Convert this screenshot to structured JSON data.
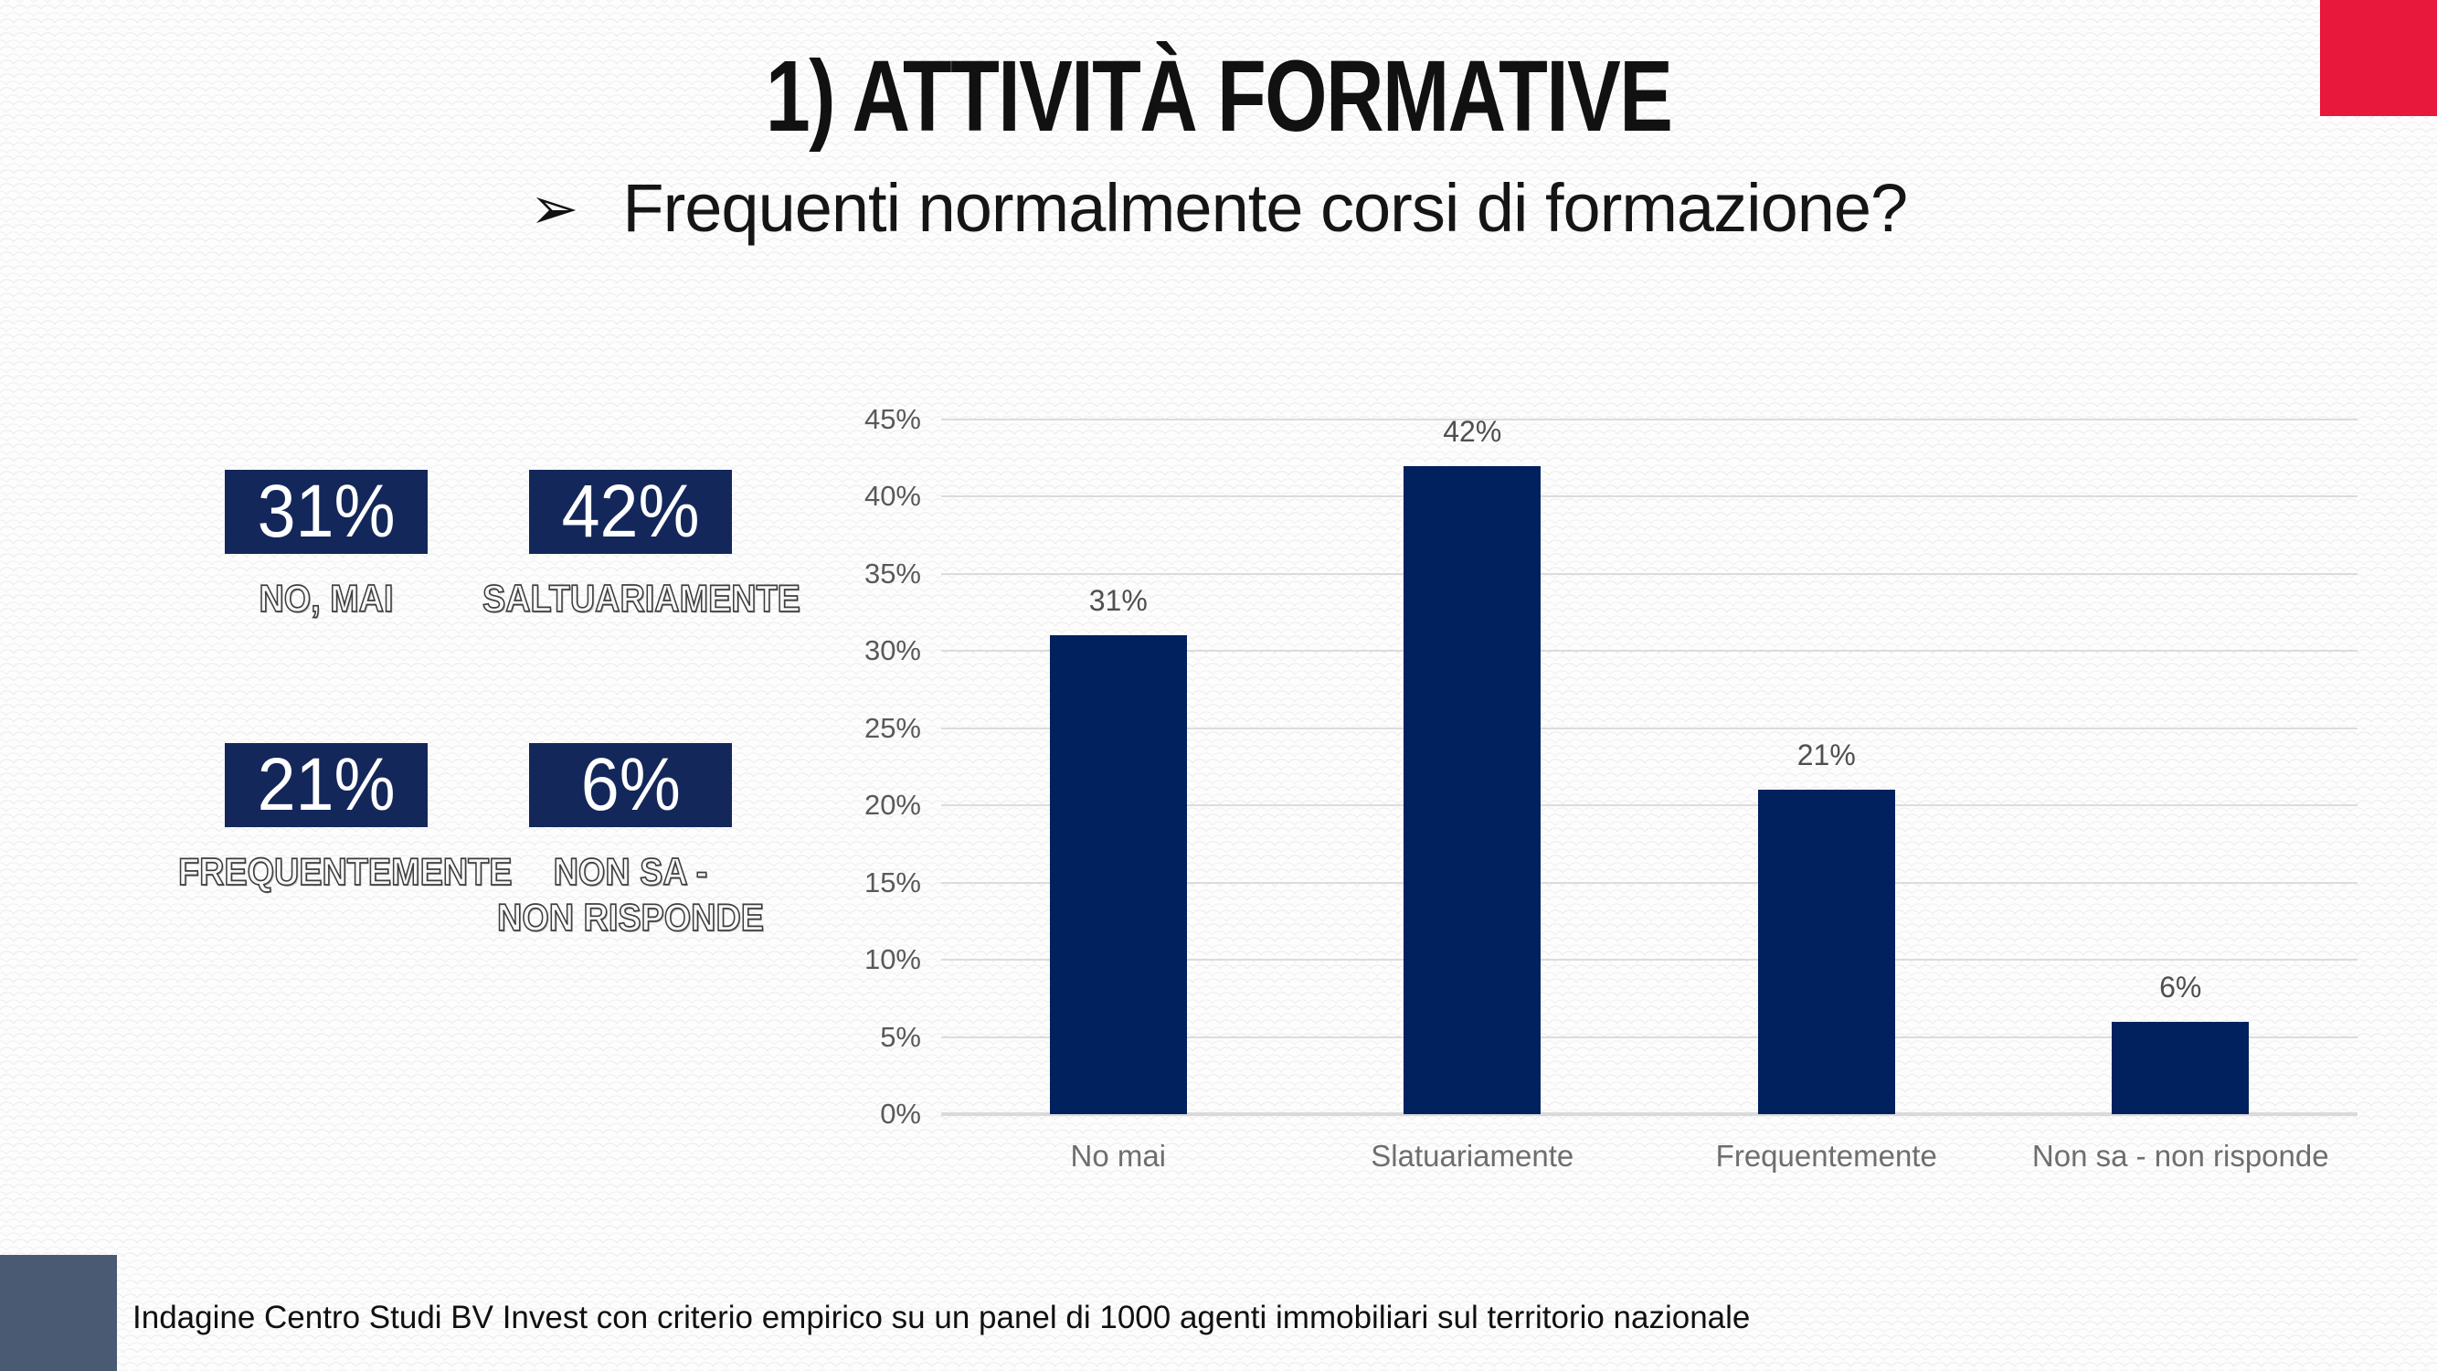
{
  "slide": {
    "title": "1) ATTIVITÀ FORMATIVE",
    "subtitle_bullet": "➢",
    "subtitle_text": "Frequenti normalmente corsi di formazione?",
    "footer_text": "Indagine Centro Studi BV Invest con criterio empirico  su un panel di 1000 agenti  immobiliari sul territorio nazionale"
  },
  "stats": [
    {
      "value": "31%",
      "label": "NO, MAI"
    },
    {
      "value": "42%",
      "label": "SALTUARIAMENTE"
    },
    {
      "value": "21%",
      "label": "FREQUENTEMENTE"
    },
    {
      "value": "6%",
      "label": "NON SA  -\nNON RISPONDE"
    }
  ],
  "chart_data": {
    "type": "bar",
    "title": "",
    "xlabel": "",
    "ylabel": "",
    "categories": [
      "No mai",
      "Slatuariamente",
      "Frequentemente",
      "Non sa - non risponde"
    ],
    "values": [
      31,
      42,
      21,
      6
    ],
    "data_labels": [
      "31%",
      "42%",
      "21%",
      "6%"
    ],
    "y_ticks": [
      45,
      40,
      35,
      30,
      25,
      20,
      15,
      10,
      5,
      0
    ],
    "y_tick_labels": [
      "45%",
      "40%",
      "35%",
      "30%",
      "25%",
      "20%",
      "15%",
      "10%",
      "5%",
      "0%"
    ],
    "ylim": [
      0,
      45
    ],
    "grid": true,
    "legend": false,
    "bar_color": "#01205e"
  },
  "decorations": {
    "corner_top_right_color": "#e8173c",
    "corner_bottom_left_color": "#4a5a73"
  },
  "colors": {
    "accent_navy": "#01205e",
    "stat_box_navy": "#13275a",
    "gridline": "#dcdcdc",
    "axis_text": "#595959",
    "category_text": "#6e6e6e",
    "data_label_text": "#4f4f4f"
  }
}
